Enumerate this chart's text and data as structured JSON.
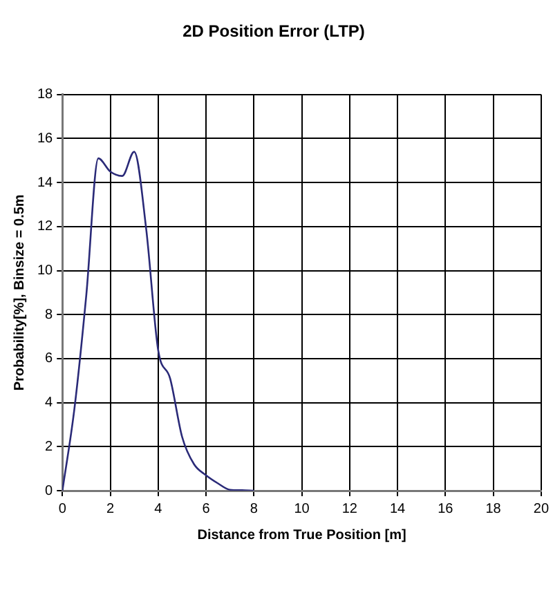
{
  "chart_data": {
    "type": "line",
    "title": "2D Position Error (LTP)",
    "xlabel": "Distance from True Position [m]",
    "ylabel": "Probability[%], Binsize = 0.5m",
    "x": [
      0,
      0.5,
      1,
      1.5,
      2,
      2.5,
      3,
      3.5,
      4,
      4.5,
      5,
      5.5,
      6,
      6.5,
      7,
      7.5,
      8
    ],
    "series": [
      {
        "color": "#2a2a78",
        "values": [
          0,
          3.7,
          8.9,
          15.1,
          14.5,
          14.3,
          15.4,
          11.9,
          6.4,
          5.1,
          2.45,
          1.2,
          0.7,
          0.33,
          0.04,
          0.02,
          0
        ]
      }
    ],
    "xlim": [
      0,
      20
    ],
    "xticks": [
      0,
      2,
      4,
      6,
      8,
      10,
      12,
      14,
      16,
      18,
      20
    ],
    "ylim": [
      0,
      18
    ],
    "yticks": [
      0,
      2,
      4,
      6,
      8,
      10,
      12,
      14,
      16,
      18
    ],
    "grid": true,
    "legend": false,
    "marker": "none",
    "line_style": "solid"
  }
}
